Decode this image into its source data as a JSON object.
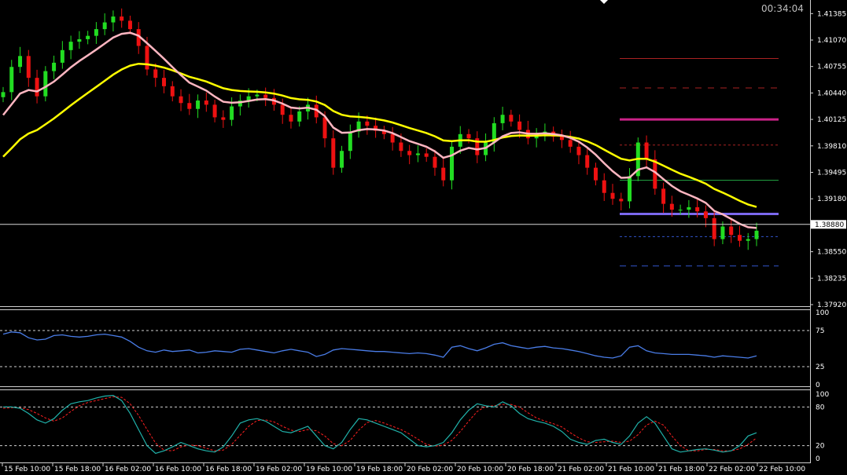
{
  "terminal": {
    "clock": "00:34:04"
  },
  "colors": {
    "background": "#000000",
    "bull": "#22dd22",
    "bear": "#ee1111",
    "ma_fast": "#ffb6c1",
    "ma_slow": "#ffff00",
    "rsi": "#4a7de8",
    "stoch_main": "#20b2aa",
    "stoch_signal": "#ff2020",
    "level_magenta": "#cc2288",
    "level_blue": "#7b68ee",
    "level_green": "#22aa44",
    "level_red": "#aa2222",
    "level_blue_dash": "#3355cc"
  },
  "chart_data": [
    {
      "type": "candlestick",
      "panel": "main",
      "y_ticks": [
        "1.41385",
        "1.41070",
        "1.40755",
        "1.40440",
        "1.40125",
        "1.39810",
        "1.39495",
        "1.39180",
        "1.38880",
        "1.38550",
        "1.38235",
        "1.37920"
      ],
      "ylim": [
        1.3792,
        1.415
      ],
      "current_price": "1.38880",
      "x_ticks": [
        "15 Feb 10:00",
        "15 Feb 18:00",
        "16 Feb 02:00",
        "16 Feb 10:00",
        "16 Feb 18:00",
        "19 Feb 02:00",
        "19 Feb 10:00",
        "19 Feb 18:00",
        "20 Feb 02:00",
        "20 Feb 10:00",
        "20 Feb 18:00",
        "21 Feb 02:00",
        "21 Feb 10:00",
        "21 Feb 18:00",
        "22 Feb 02:00",
        "22 Feb 10:00"
      ],
      "closes": [
        1.4045,
        1.4075,
        1.4088,
        1.4062,
        1.404,
        1.407,
        1.408,
        1.4095,
        1.4105,
        1.4108,
        1.4112,
        1.412,
        1.4128,
        1.4135,
        1.413,
        1.412,
        1.41,
        1.4072,
        1.4062,
        1.4052,
        1.404,
        1.4032,
        1.4025,
        1.4035,
        1.403,
        1.4015,
        1.4012,
        1.4028,
        1.4035,
        1.404,
        1.4042,
        1.4038,
        1.403,
        1.4018,
        1.401,
        1.4022,
        1.403,
        1.4015,
        1.399,
        1.3955,
        1.3975,
        1.3998,
        1.401,
        1.4005,
        1.3999,
        1.3995,
        1.3985,
        1.3975,
        1.397,
        1.3972,
        1.3968,
        1.3955,
        1.394,
        1.398,
        1.3995,
        1.399,
        1.397,
        1.3985,
        1.4008,
        1.4018,
        1.401,
        1.4,
        1.399,
        1.3995,
        1.3998,
        1.3992,
        1.3988,
        1.398,
        1.397,
        1.3955,
        1.394,
        1.3925,
        1.3918,
        1.3915,
        1.3945,
        1.3985,
        1.3965,
        1.393,
        1.3912,
        1.3905,
        1.3905,
        1.3908,
        1.3903,
        1.3895,
        1.387,
        1.3885,
        1.3875,
        1.3868,
        1.387,
        1.388
      ],
      "ma_fast_label": "",
      "ma_slow_label": "",
      "levels": [
        1.4085,
        1.405,
        1.40125,
        1.3982,
        1.394,
        1.39,
        1.3873,
        1.3838
      ]
    },
    {
      "type": "line",
      "panel": "rsi",
      "y_ticks": [
        "100",
        "75",
        "25",
        "0"
      ],
      "ylim": [
        0,
        100
      ],
      "levels": [
        75,
        25
      ],
      "values": [
        70,
        73,
        72,
        65,
        62,
        63,
        68,
        69,
        67,
        66,
        67,
        69,
        70,
        68,
        66,
        60,
        52,
        47,
        45,
        48,
        46,
        47,
        48,
        44,
        45,
        47,
        46,
        45,
        49,
        50,
        48,
        46,
        44,
        47,
        49,
        47,
        45,
        39,
        42,
        48,
        50,
        49,
        48,
        47,
        46,
        46,
        45,
        44,
        43,
        44,
        43,
        41,
        38,
        52,
        54,
        50,
        47,
        51,
        56,
        58,
        54,
        52,
        50,
        52,
        53,
        51,
        50,
        48,
        46,
        43,
        40,
        38,
        37,
        40,
        52,
        54,
        47,
        44,
        43,
        42,
        42,
        42,
        41,
        40,
        38,
        40,
        39,
        38,
        37,
        40
      ]
    },
    {
      "type": "line",
      "panel": "stochastic",
      "y_ticks": [
        "100",
        "80",
        "20",
        "0"
      ],
      "ylim": [
        0,
        100
      ],
      "levels": [
        80,
        20
      ],
      "main": [
        80,
        80,
        78,
        70,
        60,
        55,
        62,
        75,
        85,
        88,
        90,
        94,
        97,
        98,
        90,
        70,
        45,
        20,
        8,
        12,
        18,
        25,
        20,
        15,
        12,
        10,
        18,
        35,
        55,
        60,
        62,
        58,
        50,
        42,
        40,
        45,
        50,
        35,
        20,
        15,
        25,
        45,
        62,
        60,
        55,
        50,
        45,
        40,
        30,
        20,
        18,
        20,
        25,
        40,
        60,
        75,
        85,
        82,
        80,
        88,
        82,
        70,
        62,
        58,
        55,
        50,
        42,
        30,
        25,
        22,
        28,
        30,
        25,
        22,
        35,
        55,
        65,
        55,
        35,
        15,
        10,
        12,
        14,
        15,
        13,
        10,
        12,
        20,
        35,
        40
      ],
      "signal": [
        78,
        79,
        79,
        76,
        70,
        63,
        58,
        63,
        73,
        82,
        87,
        90,
        93,
        96,
        95,
        85,
        67,
        45,
        24,
        13,
        12,
        18,
        21,
        20,
        16,
        12,
        13,
        22,
        36,
        50,
        59,
        60,
        57,
        50,
        44,
        42,
        45,
        43,
        35,
        23,
        20,
        28,
        44,
        56,
        59,
        55,
        50,
        45,
        38,
        30,
        22,
        19,
        21,
        28,
        42,
        58,
        73,
        81,
        82,
        84,
        84,
        80,
        71,
        63,
        58,
        54,
        49,
        40,
        32,
        26,
        25,
        26,
        27,
        25,
        27,
        37,
        52,
        58,
        52,
        35,
        20,
        12,
        12,
        14,
        14,
        12,
        12,
        15,
        22,
        32
      ]
    }
  ]
}
